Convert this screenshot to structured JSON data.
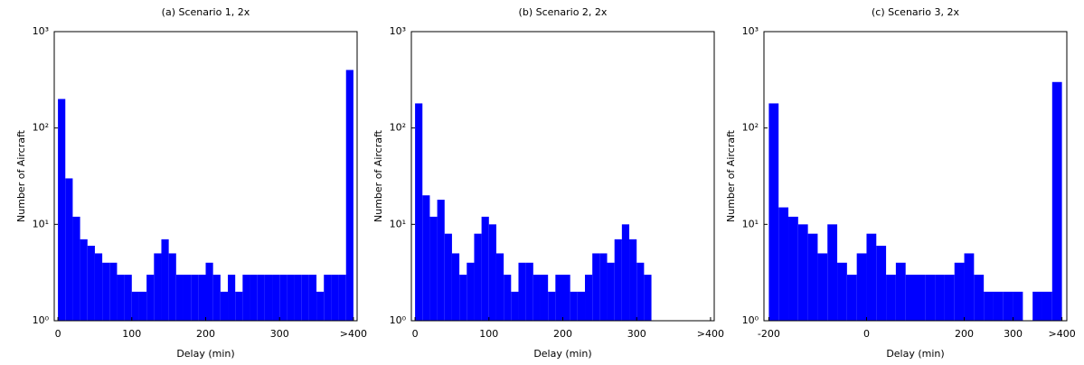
{
  "chart_data": [
    {
      "type": "histogram",
      "title": "(a) Scenario 1, 2x",
      "x_label": "Delay (min)",
      "y_label": "Number of Aircraft",
      "color": "#0000ff",
      "log_y": true,
      "bins": [
        0,
        10,
        20,
        30,
        40,
        50,
        60,
        70,
        80,
        90,
        100,
        110,
        120,
        130,
        140,
        150,
        160,
        170,
        180,
        190,
        200,
        210,
        220,
        230,
        240,
        250,
        260,
        270,
        280,
        290,
        300,
        310,
        320,
        330,
        340,
        350,
        360,
        370,
        380,
        390,
        400
      ],
      "values": [
        200,
        30,
        12,
        7,
        6,
        5,
        4,
        4,
        3,
        3,
        2,
        2,
        3,
        5,
        7,
        5,
        3,
        3,
        3,
        3,
        4,
        3,
        2,
        3,
        2,
        3,
        3,
        3,
        3,
        3,
        3,
        3,
        3,
        3,
        3,
        2,
        3,
        3,
        3,
        400
      ],
      "xlim": [
        -5,
        405
      ],
      "xticks": [
        0,
        100,
        200,
        300,
        {
          "value": 400,
          "label": ">400"
        }
      ],
      "ylim": [
        1,
        1000
      ],
      "yticks": [
        {
          "value": 1,
          "label": "10⁰"
        },
        {
          "value": 10,
          "label": "10¹"
        },
        {
          "value": 100,
          "label": "10²"
        },
        {
          "value": 1000,
          "label": "10³"
        }
      ]
    },
    {
      "type": "histogram",
      "title": "(b) Scenario 2, 2x",
      "x_label": "Delay (min)",
      "y_label": "Number of Aircraft",
      "color": "#0000ff",
      "log_y": true,
      "bins": [
        0,
        10,
        20,
        30,
        40,
        50,
        60,
        70,
        80,
        90,
        100,
        110,
        120,
        130,
        140,
        150,
        160,
        170,
        180,
        190,
        200,
        210,
        220,
        230,
        240,
        250,
        260,
        270,
        280,
        290,
        300,
        310,
        320,
        330,
        340,
        350,
        360,
        370,
        380,
        390,
        400
      ],
      "values": [
        180,
        20,
        12,
        18,
        8,
        5,
        3,
        4,
        8,
        12,
        10,
        5,
        3,
        2,
        4,
        4,
        3,
        3,
        2,
        3,
        3,
        2,
        2,
        3,
        5,
        5,
        4,
        7,
        10,
        7,
        4,
        3,
        0,
        0,
        0,
        0,
        0,
        0,
        0,
        0
      ],
      "xlim": [
        -5,
        405
      ],
      "xticks": [
        0,
        100,
        200,
        300,
        {
          "value": 400,
          "label": ">400"
        }
      ],
      "ylim": [
        1,
        1000
      ],
      "yticks": [
        {
          "value": 1,
          "label": "10⁰"
        },
        {
          "value": 10,
          "label": "10¹"
        },
        {
          "value": 100,
          "label": "10²"
        },
        {
          "value": 1000,
          "label": "10³"
        }
      ]
    },
    {
      "type": "histogram",
      "title": "(c) Scenario 3, 2x",
      "x_label": "Delay (min)",
      "y_label": "Number of Aircraft",
      "color": "#0000ff",
      "log_y": true,
      "bins": [
        -200,
        -180,
        -160,
        -140,
        -120,
        -100,
        -80,
        -60,
        -40,
        -20,
        0,
        20,
        40,
        60,
        80,
        100,
        120,
        140,
        160,
        180,
        200,
        220,
        240,
        260,
        280,
        300,
        320,
        340,
        360,
        380,
        400
      ],
      "values": [
        180,
        15,
        12,
        10,
        8,
        5,
        10,
        4,
        3,
        5,
        8,
        6,
        3,
        4,
        3,
        3,
        3,
        3,
        3,
        4,
        5,
        3,
        2,
        2,
        2,
        2,
        1,
        2,
        2,
        300
      ],
      "xlim": [
        -210,
        410
      ],
      "xticks": [
        -200,
        0,
        200,
        300,
        {
          "value": 400,
          "label": ">400"
        }
      ],
      "ylim": [
        1,
        1000
      ],
      "yticks": [
        {
          "value": 1,
          "label": "10⁰"
        },
        {
          "value": 10,
          "label": "10¹"
        },
        {
          "value": 100,
          "label": "10²"
        },
        {
          "value": 1000,
          "label": "10³"
        }
      ]
    }
  ]
}
